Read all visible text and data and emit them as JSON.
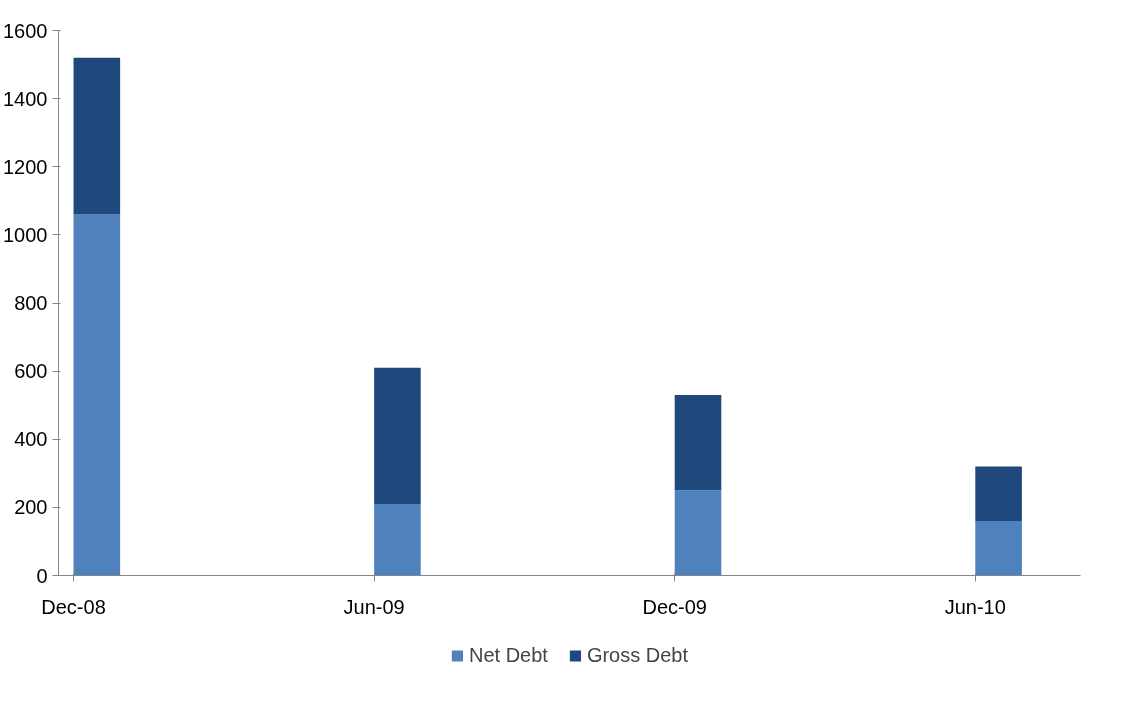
{
  "chart_data": {
    "type": "bar",
    "stacked": true,
    "categories": [
      "Dec-08",
      "Jun-09",
      "Dec-09",
      "Jun-10"
    ],
    "series": [
      {
        "name": "Net Debt",
        "color": "#4f81bd",
        "values": [
          1060,
          210,
          250,
          160
        ]
      },
      {
        "name": "Gross Debt",
        "color": "#1f497d",
        "values": [
          460,
          400,
          280,
          160
        ]
      }
    ],
    "ylim": [
      0,
      1600
    ],
    "yticks": [
      0,
      200,
      400,
      600,
      800,
      1000,
      1200,
      1400,
      1600
    ],
    "grid": false,
    "legend": "bottom"
  }
}
